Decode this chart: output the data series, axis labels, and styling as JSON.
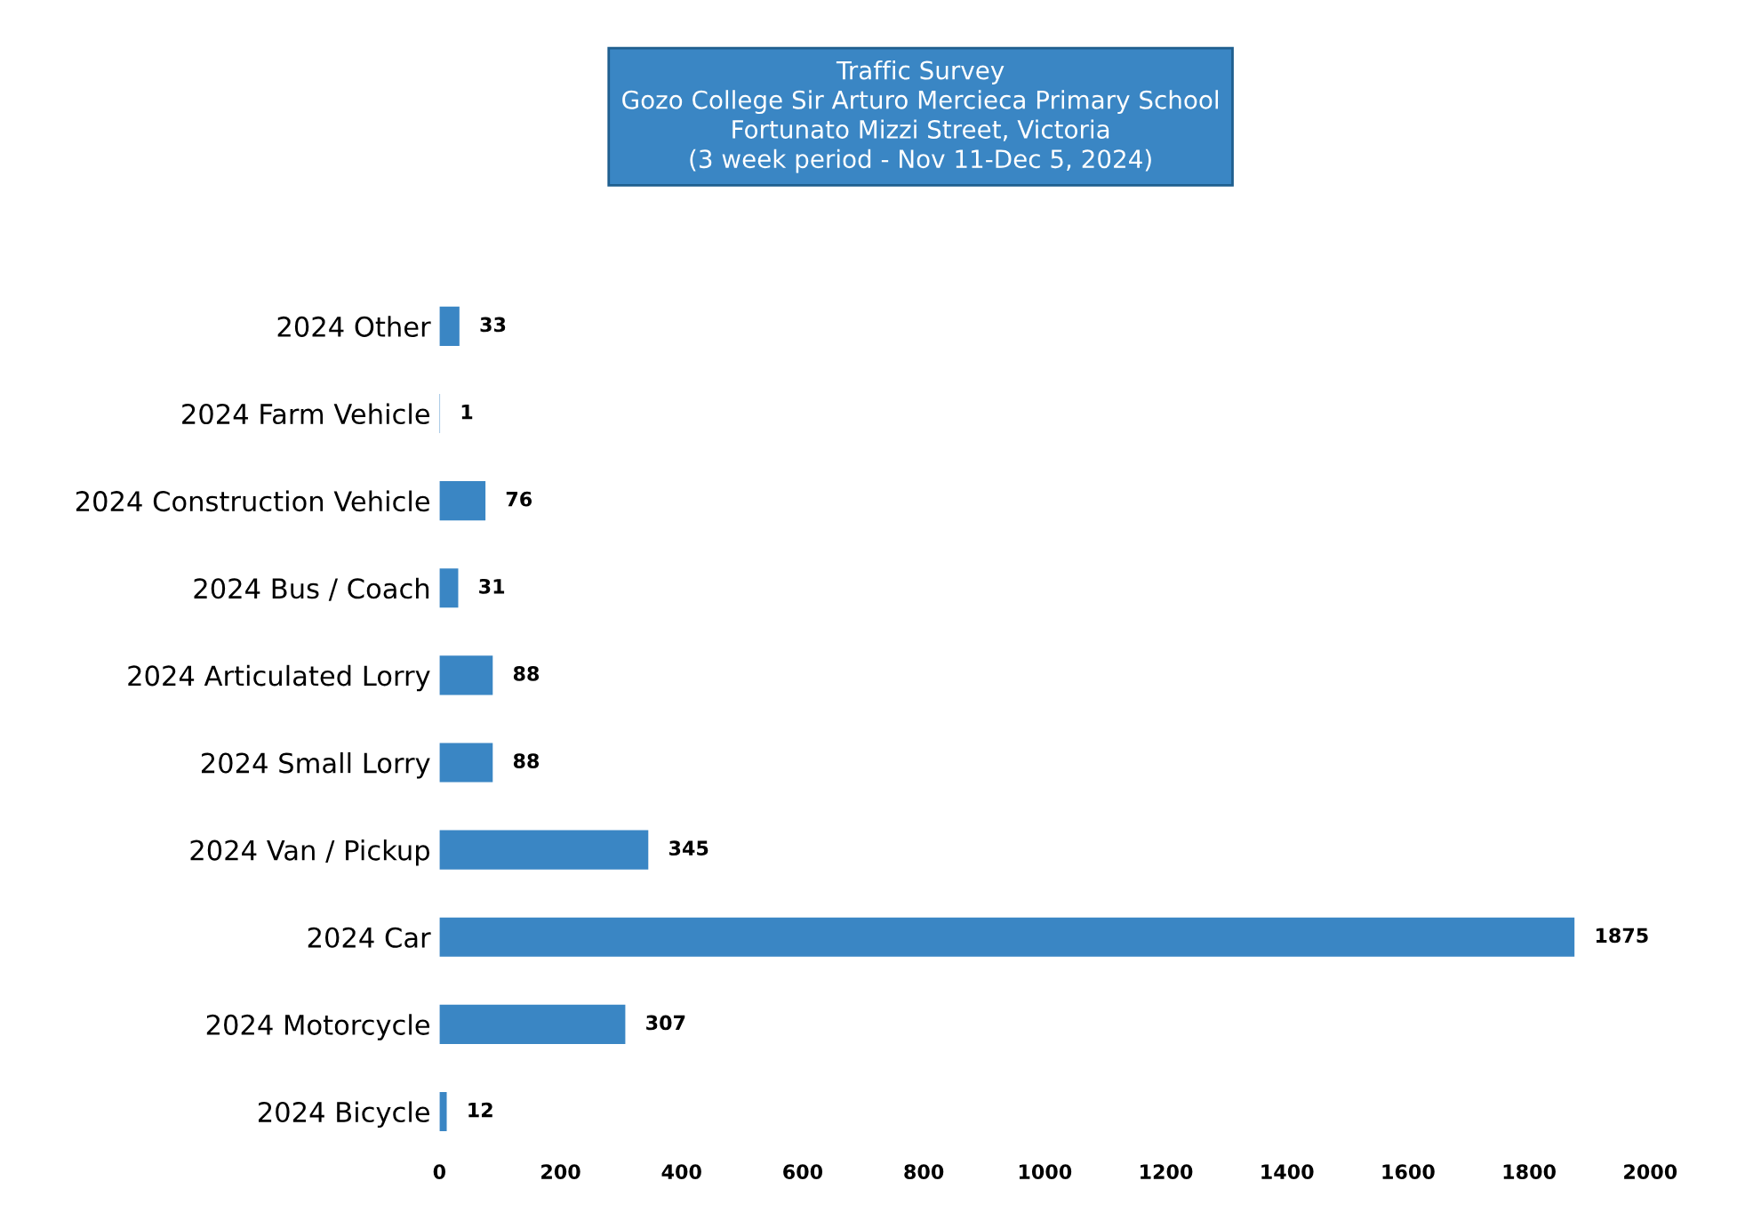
{
  "chart_data": {
    "type": "bar",
    "orientation": "horizontal",
    "title": "Traffic Survey\nGozo College Sir Arturo Mercieca Primary School\nFortunato Mizzi Street, Victoria\n(3 week period - Nov 11-Dec 5, 2024)",
    "categories": [
      "2024 Other",
      "2024 Farm Vehicle",
      "2024 Construction Vehicle",
      "2024 Bus / Coach",
      "2024 Articulated Lorry",
      "2024 Small Lorry",
      "2024 Van / Pickup",
      "2024 Car",
      "2024 Motorcycle",
      "2024 Bicycle"
    ],
    "values": [
      33,
      1,
      76,
      31,
      88,
      88,
      345,
      1875,
      307,
      12
    ],
    "color": "#3a86c4",
    "xlim": [
      0,
      2000
    ],
    "xticks": [
      0,
      200,
      400,
      600,
      800,
      1000,
      1200,
      1400,
      1600,
      1800,
      2000
    ],
    "data_labels": true,
    "grid": false,
    "legend": false
  }
}
